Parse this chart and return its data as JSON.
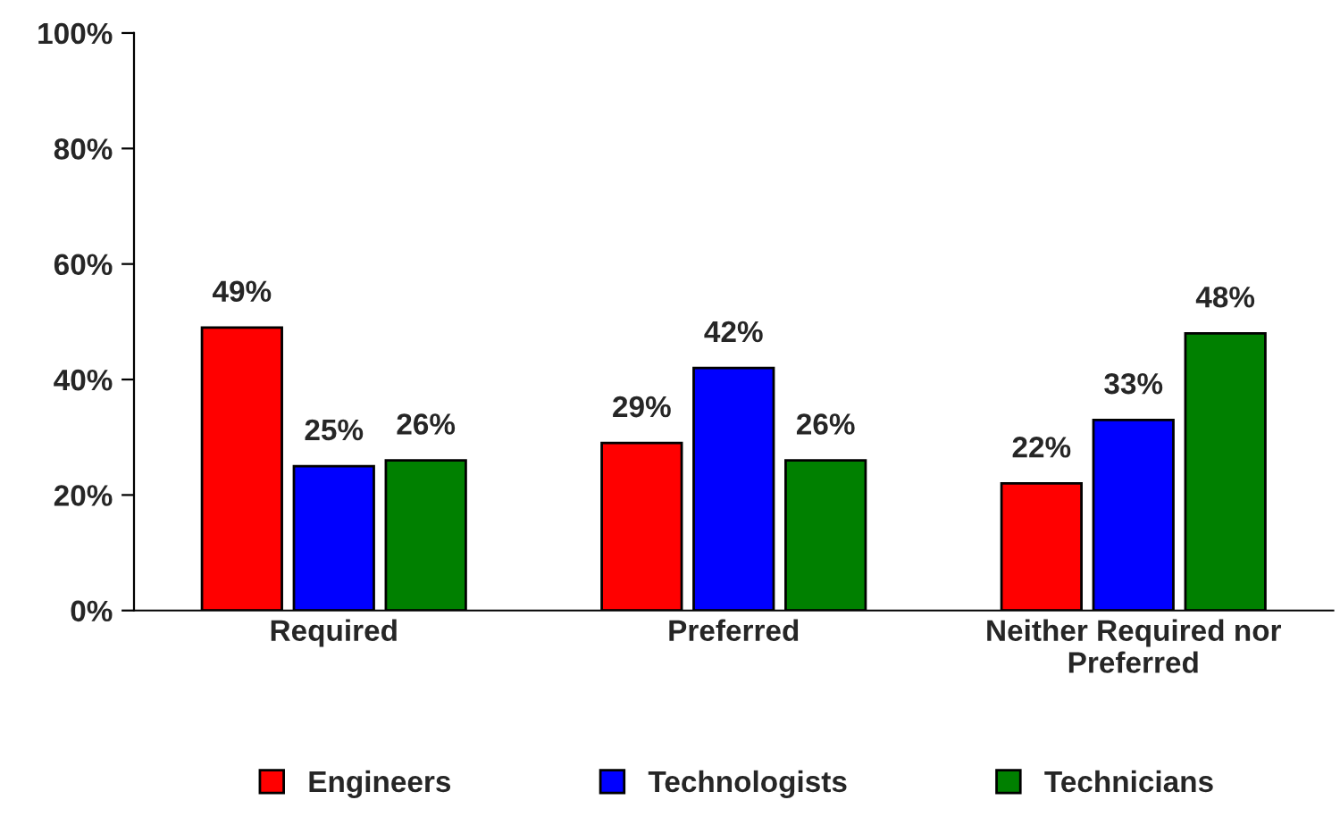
{
  "chart_data": {
    "type": "bar",
    "categories": [
      "Required",
      "Preferred",
      "Neither Required nor Preferred"
    ],
    "series": [
      {
        "name": "Engineers",
        "color": "#ff0000",
        "values": [
          49,
          29,
          22
        ],
        "value_labels": [
          "49%",
          "29%",
          "22%"
        ]
      },
      {
        "name": "Technologists",
        "color": "#0000ff",
        "values": [
          25,
          42,
          33
        ],
        "value_labels": [
          "25%",
          "42%",
          "33%"
        ]
      },
      {
        "name": "Technicians",
        "color": "#008000",
        "values": [
          26,
          26,
          48
        ],
        "value_labels": [
          "26%",
          "26%",
          "48%"
        ]
      }
    ],
    "ylim": [
      0,
      100
    ],
    "yticks": [
      {
        "value": 0,
        "label": "0%"
      },
      {
        "value": 20,
        "label": "20%"
      },
      {
        "value": 40,
        "label": "40%"
      },
      {
        "value": 60,
        "label": "60%"
      },
      {
        "value": 80,
        "label": "80%"
      },
      {
        "value": 100,
        "label": "100%"
      }
    ],
    "grid": false,
    "legend": "bottom"
  }
}
